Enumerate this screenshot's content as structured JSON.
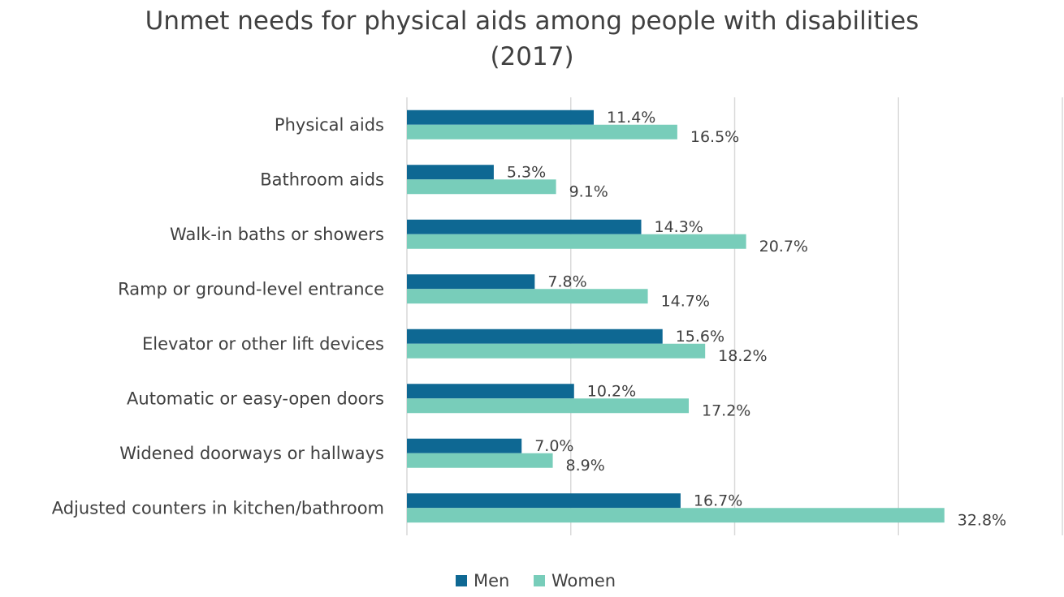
{
  "chart_data": {
    "type": "bar",
    "orientation": "horizontal",
    "title_line1": "Unmet needs for physical aids among people with disabilities",
    "title_line2": "(2017)",
    "categories": [
      "Physical aids",
      "Bathroom aids",
      "Walk-in baths or showers",
      "Ramp or ground-level entrance",
      "Elevator or other lift devices",
      "Automatic or easy-open doors",
      "Widened doorways or hallways",
      "Adjusted counters in kitchen/bathroom"
    ],
    "series": [
      {
        "name": "Men",
        "color": "#0e6893",
        "values": [
          11.4,
          5.3,
          14.3,
          7.8,
          15.6,
          10.2,
          7.0,
          16.7
        ],
        "labels": [
          "11.4%",
          "5.3%",
          "14.3%",
          "7.8%",
          "15.6%",
          "10.2%",
          "7.0%",
          "16.7%"
        ]
      },
      {
        "name": "Women",
        "color": "#78cdba",
        "values": [
          16.5,
          9.1,
          20.7,
          14.7,
          18.2,
          17.2,
          8.9,
          32.8
        ],
        "labels": [
          "16.5%",
          "9.1%",
          "20.7%",
          "14.7%",
          "18.2%",
          "17.2%",
          "8.9%",
          "32.8%"
        ]
      }
    ],
    "xlim": [
      0,
      40
    ],
    "gridlines": true,
    "legend_position": "bottom"
  }
}
